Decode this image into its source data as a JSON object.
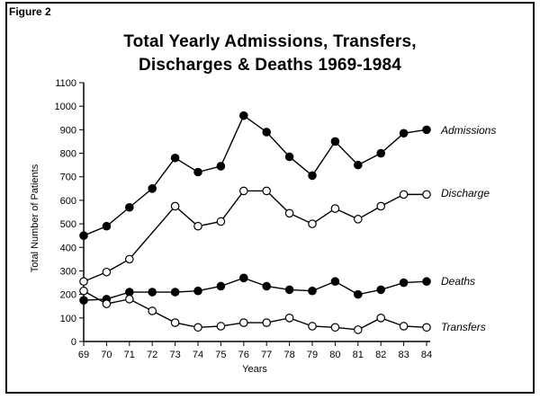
{
  "figure_label": "Figure 2",
  "chart_data": {
    "type": "line",
    "title_line1": "Total Yearly Admissions, Transfers,",
    "title_line2": "Discharges & Deaths 1969-1984",
    "xlabel": "Years",
    "ylabel": "Total Number of Patients",
    "x": [
      "69",
      "70",
      "71",
      "72",
      "73",
      "74",
      "75",
      "76",
      "77",
      "78",
      "79",
      "80",
      "81",
      "82",
      "83",
      "84"
    ],
    "ylim": [
      0,
      1100
    ],
    "yticks": [
      0,
      100,
      200,
      300,
      400,
      500,
      600,
      700,
      800,
      900,
      1000,
      1100
    ],
    "grid": false,
    "series": [
      {
        "name": "Admissions",
        "marker": "filled-circle",
        "values": [
          450,
          490,
          570,
          650,
          780,
          720,
          745,
          960,
          890,
          785,
          705,
          850,
          750,
          800,
          885,
          900
        ]
      },
      {
        "name": "Discharge",
        "marker": "open-circle",
        "values": [
          255,
          295,
          350,
          null,
          575,
          490,
          510,
          640,
          640,
          545,
          500,
          565,
          520,
          575,
          625,
          625
        ]
      },
      {
        "name": "Deaths",
        "marker": "filled-circle",
        "values": [
          175,
          180,
          210,
          210,
          210,
          215,
          235,
          270,
          235,
          220,
          215,
          255,
          200,
          220,
          250,
          255
        ]
      },
      {
        "name": "Transfers",
        "marker": "open-circle",
        "values": [
          215,
          160,
          180,
          130,
          80,
          60,
          65,
          80,
          80,
          100,
          65,
          60,
          50,
          100,
          65,
          60
        ]
      }
    ]
  }
}
